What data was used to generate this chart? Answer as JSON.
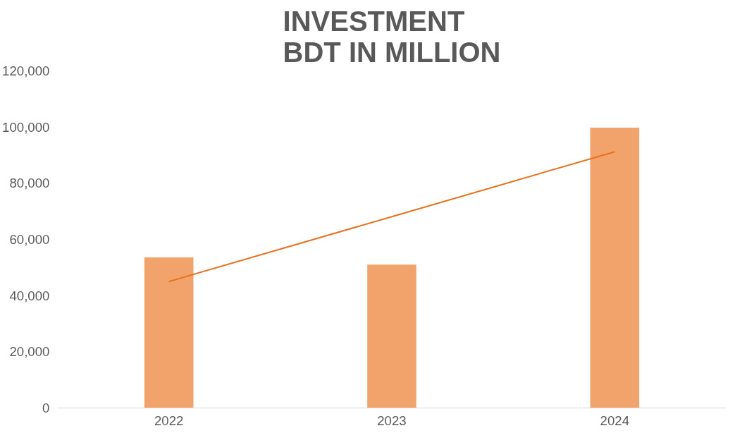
{
  "chart_data": {
    "type": "bar",
    "title": "INVESTMENT\nBDT IN MILLION",
    "categories": [
      "2022",
      "2023",
      "2024"
    ],
    "series": [
      {
        "color": "#f2a36b",
        "values": [
          53600,
          51000,
          99800
        ]
      },
      {
        "type": "line",
        "color": "#e8701f",
        "values": [
          45000,
          68100,
          91200
        ]
      }
    ],
    "ylim": [
      0,
      120000
    ],
    "yticks": [
      {
        "value": 0,
        "label": "0"
      },
      {
        "value": 20000,
        "label": "20,000"
      },
      {
        "value": 40000,
        "label": "40,000"
      },
      {
        "value": 60000,
        "label": "60,000"
      },
      {
        "value": 80000,
        "label": "80,000"
      },
      {
        "value": 100000,
        "label": "100,000"
      },
      {
        "value": 120000,
        "label": "120,000"
      }
    ],
    "grid": false
  }
}
